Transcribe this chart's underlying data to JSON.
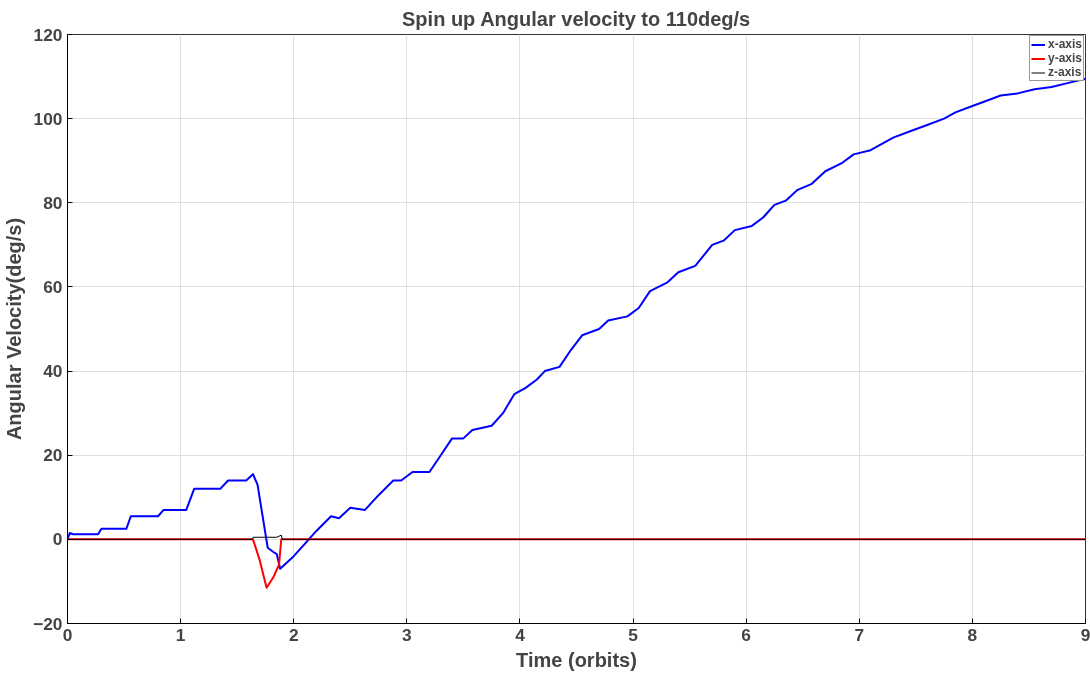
{
  "chart_data": {
    "type": "line",
    "title": "Spin up Angular velocity to 110deg/s",
    "xlabel": "Time (orbits)",
    "ylabel": "Angular Velocity(deg/s)",
    "xlim": [
      0,
      9
    ],
    "xticks": [
      0,
      1,
      2,
      3,
      4,
      5,
      6,
      7,
      8,
      9
    ],
    "ylim": [
      -20,
      120
    ],
    "yticks": [
      -20,
      0,
      20,
      40,
      60,
      80,
      100,
      120
    ],
    "grid": true,
    "legend": "top right",
    "series": [
      {
        "name": "x-axis",
        "color": "#0000ff",
        "x": [
          0,
          0.02,
          0.05,
          0.27,
          0.3,
          0.52,
          0.56,
          0.8,
          0.85,
          1.05,
          1.12,
          1.35,
          1.42,
          1.58,
          1.64,
          1.68,
          1.77,
          1.82,
          1.85,
          1.88,
          2.0,
          2.1,
          2.2,
          2.33,
          2.4,
          2.5,
          2.63,
          2.75,
          2.88,
          2.95,
          3.05,
          3.2,
          3.3,
          3.4,
          3.5,
          3.58,
          3.75,
          3.85,
          3.95,
          4.05,
          4.15,
          4.22,
          4.35,
          4.45,
          4.55,
          4.7,
          4.78,
          4.95,
          5.05,
          5.15,
          5.3,
          5.4,
          5.55,
          5.7,
          5.8,
          5.9,
          6.05,
          6.15,
          6.25,
          6.35,
          6.45,
          6.58,
          6.7,
          6.85,
          6.95,
          7.1,
          7.2,
          7.3,
          7.45,
          7.6,
          7.75,
          7.85,
          8.0,
          8.15,
          8.25,
          8.4,
          8.55,
          8.7,
          8.85,
          9.0
        ],
        "values": [
          0,
          1.5,
          1.2,
          1.2,
          2.5,
          2.5,
          5.5,
          5.5,
          7,
          7,
          12,
          12,
          14,
          14,
          15.5,
          13,
          -2,
          -3,
          -3.5,
          -7,
          -4,
          -1,
          2,
          5.5,
          5,
          7.5,
          7,
          10.5,
          14,
          14,
          16,
          16,
          20,
          24,
          24,
          26,
          27,
          30,
          34.5,
          36,
          38,
          40,
          41,
          45,
          48.5,
          50,
          52,
          53,
          55,
          59,
          61,
          63.5,
          65,
          70,
          71,
          73.5,
          74.5,
          76.5,
          79.5,
          80.5,
          83,
          84.5,
          87.5,
          89.5,
          91.5,
          92.5,
          94,
          95.5,
          97,
          98.5,
          100,
          101.5,
          103,
          104.5,
          105.5,
          106,
          107,
          107.5,
          108.5,
          109.5
        ]
      },
      {
        "name": "y-axis",
        "color": "#ff0000",
        "x": [
          0,
          1.64,
          1.7,
          1.76,
          1.82,
          1.87,
          1.89,
          9
        ],
        "values": [
          0,
          0,
          -5,
          -11.5,
          -9,
          -6,
          0,
          0
        ]
      },
      {
        "name": "z-axis",
        "color": "#000000",
        "x": [
          0,
          1.63,
          1.64,
          1.85,
          1.89,
          1.9,
          9
        ],
        "values": [
          0,
          0,
          0.5,
          0.5,
          1,
          0,
          0
        ]
      }
    ]
  }
}
